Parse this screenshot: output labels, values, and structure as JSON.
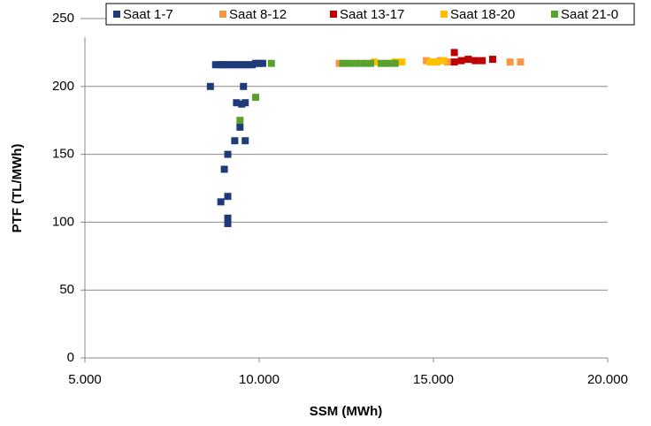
{
  "chart_data": {
    "type": "scatter",
    "xlabel": "SSM (MWh)",
    "ylabel": "PTF (TL/MWh)",
    "xlim": [
      5000,
      20000
    ],
    "xticks": [
      {
        "value": 5000,
        "label": "5.000"
      },
      {
        "value": 10000,
        "label": "10.000"
      },
      {
        "value": 15000,
        "label": "15.000"
      },
      {
        "value": 20000,
        "label": "20.000"
      }
    ],
    "ylim": [
      0,
      250
    ],
    "yticks": [
      0,
      50,
      100,
      150,
      200,
      250
    ],
    "grid": true,
    "legend": "top",
    "series": [
      {
        "name": "Saat 1-7",
        "color": "#1f3a78",
        "x": [
          8750,
          8850,
          8950,
          9000,
          9100,
          9200,
          9300,
          9400,
          9500,
          9600,
          9700,
          9800,
          9900,
          10000,
          10100,
          8600,
          9550,
          9350,
          9500,
          9600,
          9450,
          9300,
          9600,
          9100,
          9000,
          9100,
          8900,
          9100,
          9100
        ],
        "values": [
          216,
          216,
          216,
          216,
          216,
          216,
          216,
          216,
          216,
          216,
          216,
          216,
          217,
          217,
          217,
          200,
          200,
          188,
          187,
          188,
          170,
          160,
          160,
          150,
          139,
          119,
          115,
          103,
          99
        ]
      },
      {
        "name": "Saat 8-12",
        "color": "#f79646",
        "x": [
          12300,
          14800,
          15000,
          15200,
          15400,
          17200,
          17500
        ],
        "values": [
          217,
          219,
          218,
          219,
          218,
          218,
          218
        ]
      },
      {
        "name": "Saat 13-17",
        "color": "#c00000",
        "x": [
          15600,
          15600,
          15800,
          16000,
          16200,
          16400,
          16700
        ],
        "values": [
          225,
          218,
          219,
          220,
          219,
          219,
          220
        ]
      },
      {
        "name": "Saat 18-20",
        "color": "#ffc000",
        "x": [
          13300,
          13600,
          13900,
          14100,
          14900,
          15100,
          15300
        ],
        "values": [
          218,
          217,
          218,
          218,
          218,
          218,
          219
        ]
      },
      {
        "name": "Saat 21-0",
        "color": "#5aa02c",
        "x": [
          9900,
          9450,
          10350,
          12400,
          12600,
          12800,
          13000,
          13200,
          13500,
          13700,
          13900
        ],
        "values": [
          192,
          175,
          217,
          217,
          217,
          217,
          217,
          217,
          217,
          217,
          217
        ]
      }
    ]
  }
}
